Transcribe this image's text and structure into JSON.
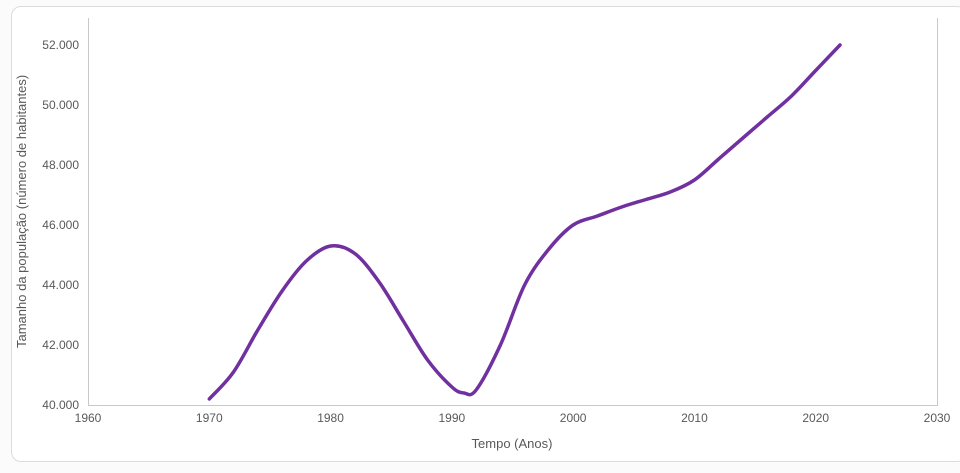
{
  "colors": {
    "line": "#7030A0",
    "axis_line": "#c8c8c8",
    "tick_text": "#595959",
    "frame_border": "#dcdcdc",
    "background": "#ffffff"
  },
  "chart_data": {
    "type": "line",
    "title": "",
    "xlabel": "Tempo (Anos)",
    "ylabel": "Tamanho da população (número de habitantes)",
    "xlim": [
      1960,
      2030
    ],
    "ylim": [
      40000,
      52000
    ],
    "grid": false,
    "legend_position": "none",
    "x_ticks": [
      {
        "value": 1960,
        "label": "1960"
      },
      {
        "value": 1970,
        "label": "1970"
      },
      {
        "value": 1980,
        "label": "1980"
      },
      {
        "value": 1990,
        "label": "1990"
      },
      {
        "value": 2000,
        "label": "2000"
      },
      {
        "value": 2010,
        "label": "2010"
      },
      {
        "value": 2020,
        "label": "2020"
      },
      {
        "value": 2030,
        "label": "2030"
      }
    ],
    "y_ticks": [
      {
        "value": 40000,
        "label": "40.000"
      },
      {
        "value": 42000,
        "label": "42.000"
      },
      {
        "value": 44000,
        "label": "44.000"
      },
      {
        "value": 46000,
        "label": "46.000"
      },
      {
        "value": 48000,
        "label": "48.000"
      },
      {
        "value": 50000,
        "label": "50.000"
      },
      {
        "value": 52000,
        "label": "52.000"
      }
    ],
    "series": [
      {
        "color": "#7030A0",
        "points": [
          [
            1970,
            40200
          ],
          [
            1972,
            41100
          ],
          [
            1974,
            42500
          ],
          [
            1976,
            43800
          ],
          [
            1978,
            44800
          ],
          [
            1980,
            45300
          ],
          [
            1982,
            45050
          ],
          [
            1984,
            44100
          ],
          [
            1986,
            42800
          ],
          [
            1988,
            41500
          ],
          [
            1990,
            40600
          ],
          [
            1991,
            40400
          ],
          [
            1992,
            40500
          ],
          [
            1994,
            42000
          ],
          [
            1996,
            44000
          ],
          [
            1998,
            45200
          ],
          [
            2000,
            46000
          ],
          [
            2002,
            46300
          ],
          [
            2004,
            46600
          ],
          [
            2006,
            46850
          ],
          [
            2008,
            47100
          ],
          [
            2010,
            47500
          ],
          [
            2012,
            48200
          ],
          [
            2014,
            48900
          ],
          [
            2016,
            49600
          ],
          [
            2018,
            50300
          ],
          [
            2020,
            51150
          ],
          [
            2022,
            52000
          ]
        ]
      }
    ]
  }
}
